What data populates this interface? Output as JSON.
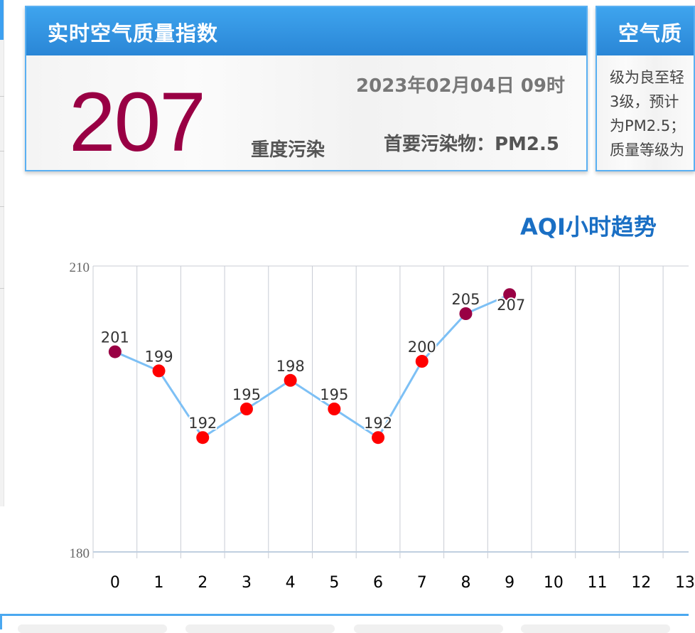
{
  "panel_realtime": {
    "title": "实时空气质量指数",
    "aqi": "207",
    "datetime": "2023年02月04日 09时",
    "level": "重度污染",
    "primary_pollutant": "首要污染物：PM2.5",
    "aqi_color": "#990044"
  },
  "panel_forecast": {
    "title": "空气质",
    "lines": [
      "级为良至轻",
      "3级，预计",
      "为PM2.5；",
      "质量等级为"
    ]
  },
  "chart_data": {
    "type": "line",
    "title": "AQI小时趋势",
    "categories": [
      "0",
      "1",
      "2",
      "3",
      "4",
      "5",
      "6",
      "7",
      "8",
      "9",
      "10",
      "11",
      "12",
      "13"
    ],
    "values": [
      201,
      199,
      192,
      195,
      198,
      195,
      192,
      200,
      205,
      207,
      null,
      null,
      null,
      null
    ],
    "point_colors": [
      "#990044",
      "#ff0000",
      "#ff0000",
      "#ff0000",
      "#ff0000",
      "#ff0000",
      "#ff0000",
      "#ff0000",
      "#990044",
      "#990044"
    ],
    "ylim": [
      180,
      210
    ],
    "yticks": [
      "180",
      "210"
    ],
    "line_color": "#7dc0f5",
    "grid": true,
    "xlabel": "",
    "ylabel": ""
  }
}
